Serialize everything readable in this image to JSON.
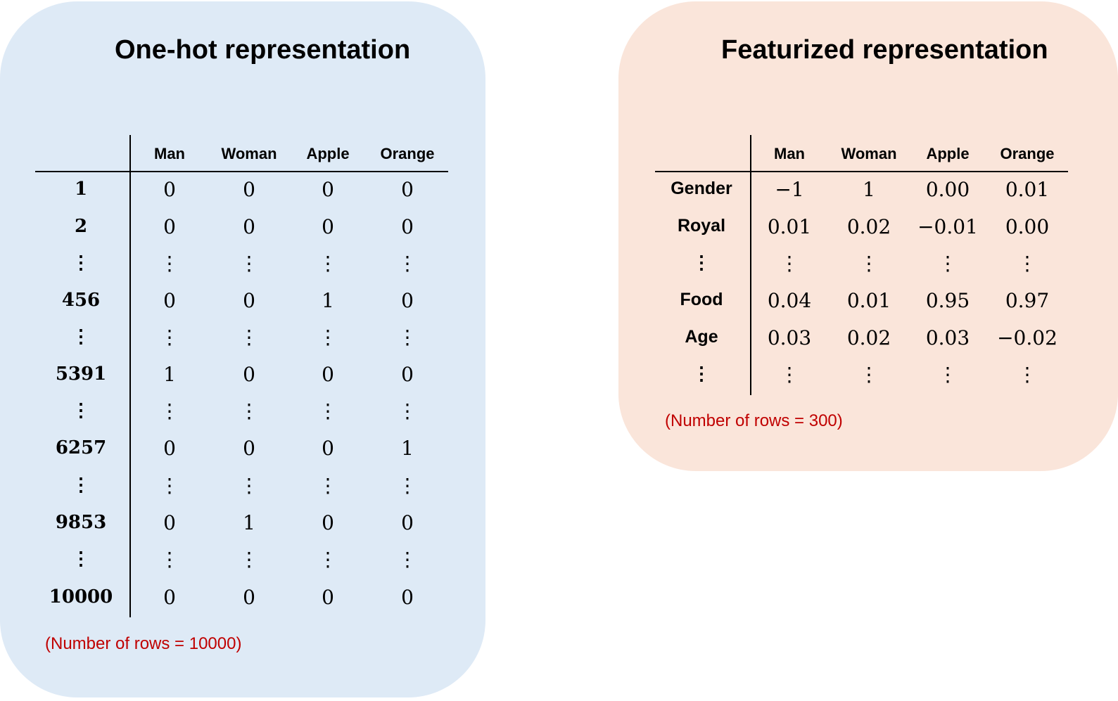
{
  "onehot": {
    "title": "One-hot representation",
    "columns": [
      "Man",
      "Woman",
      "Apple",
      "Orange"
    ],
    "rows": [
      {
        "label": "1",
        "values": [
          "0",
          "0",
          "0",
          "0"
        ]
      },
      {
        "label": "2",
        "values": [
          "0",
          "0",
          "0",
          "0"
        ]
      },
      {
        "label": "⋮",
        "values": [
          "⋮",
          "⋮",
          "⋮",
          "⋮"
        ]
      },
      {
        "label": "456",
        "values": [
          "0",
          "0",
          "1",
          "0"
        ]
      },
      {
        "label": "⋮",
        "values": [
          "⋮",
          "⋮",
          "⋮",
          "⋮"
        ]
      },
      {
        "label": "5391",
        "values": [
          "1",
          "0",
          "0",
          "0"
        ]
      },
      {
        "label": "⋮",
        "values": [
          "⋮",
          "⋮",
          "⋮",
          "⋮"
        ]
      },
      {
        "label": "6257",
        "values": [
          "0",
          "0",
          "0",
          "1"
        ]
      },
      {
        "label": "⋮",
        "values": [
          "⋮",
          "⋮",
          "⋮",
          "⋮"
        ]
      },
      {
        "label": "9853",
        "values": [
          "0",
          "1",
          "0",
          "0"
        ]
      },
      {
        "label": "⋮",
        "values": [
          "⋮",
          "⋮",
          "⋮",
          "⋮"
        ]
      },
      {
        "label": "10000",
        "values": [
          "0",
          "0",
          "0",
          "0"
        ]
      }
    ],
    "note": "(Number of rows = 10000)"
  },
  "featurized": {
    "title": "Featurized representation",
    "columns": [
      "Man",
      "Woman",
      "Apple",
      "Orange"
    ],
    "rows": [
      {
        "label": "Gender",
        "values": [
          "−1",
          "1",
          "0.00",
          "0.01"
        ]
      },
      {
        "label": "Royal",
        "values": [
          "0.01",
          "0.02",
          "−0.01",
          "0.00"
        ]
      },
      {
        "label": "⋮",
        "values": [
          "⋮",
          "⋮",
          "⋮",
          "⋮"
        ]
      },
      {
        "label": "Food",
        "values": [
          "0.04",
          "0.01",
          "0.95",
          "0.97"
        ]
      },
      {
        "label": "Age",
        "values": [
          "0.03",
          "0.02",
          "0.03",
          "−0.02"
        ]
      },
      {
        "label": "⋮",
        "values": [
          "⋮",
          "⋮",
          "⋮",
          "⋮"
        ]
      }
    ],
    "note": "(Number of rows = 300)"
  },
  "colors": {
    "onehot_bg": "#deeaf6",
    "featurized_bg": "#fae5da",
    "note": "#c00000"
  }
}
